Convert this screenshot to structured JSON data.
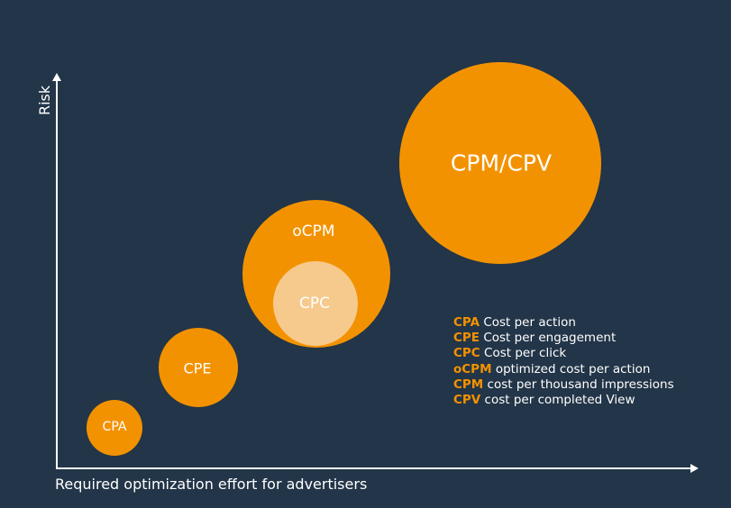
{
  "axes": {
    "y_label": "Risk",
    "x_label": "Required optimization effort for advertisers"
  },
  "colors": {
    "background": "#233548",
    "bubble": "#f39200",
    "bubble_light": "#f6c98c",
    "legend_key": "#f39200",
    "text": "#ffffff"
  },
  "bubbles": [
    {
      "label": "CPA"
    },
    {
      "label": "CPE"
    },
    {
      "label": "oCPM"
    },
    {
      "label": "CPC"
    },
    {
      "label": "CPM/CPV"
    }
  ],
  "legend": [
    {
      "key": "CPA",
      "text": "Cost per action"
    },
    {
      "key": "CPE",
      "text": "Cost per engagement"
    },
    {
      "key": "CPC",
      "text": "Cost per click"
    },
    {
      "key": "oCPM",
      "text": "optimized cost per action"
    },
    {
      "key": "CPM",
      "text": "cost per thousand impressions"
    },
    {
      "key": "CPV",
      "text": "cost per completed View"
    }
  ]
}
